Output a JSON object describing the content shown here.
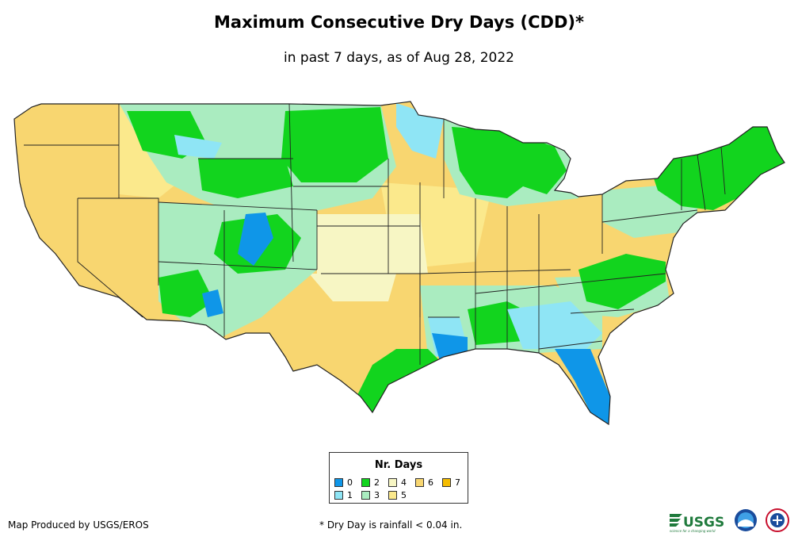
{
  "title": "Maximum Consecutive Dry Days (CDD)*",
  "subtitle": "in past 7 days, as of Aug 28, 2022",
  "legend": {
    "title": "Nr. Days",
    "items": [
      {
        "label": "0",
        "color": "#0f96e8"
      },
      {
        "label": "1",
        "color": "#8fe5f5"
      },
      {
        "label": "2",
        "color": "#12d41e"
      },
      {
        "label": "3",
        "color": "#aaecc0"
      },
      {
        "label": "4",
        "color": "#f7f6c4"
      },
      {
        "label": "5",
        "color": "#fbe98c"
      },
      {
        "label": "6",
        "color": "#f8d670"
      },
      {
        "label": "7",
        "color": "#f5bc00"
      }
    ]
  },
  "footer": {
    "credit": "Map Produced by USGS/EROS",
    "note": "* Dry Day is rainfall < 0.04 in."
  },
  "logos": {
    "usgs": "USGS",
    "usgs_tagline": "science for a changing world"
  }
}
